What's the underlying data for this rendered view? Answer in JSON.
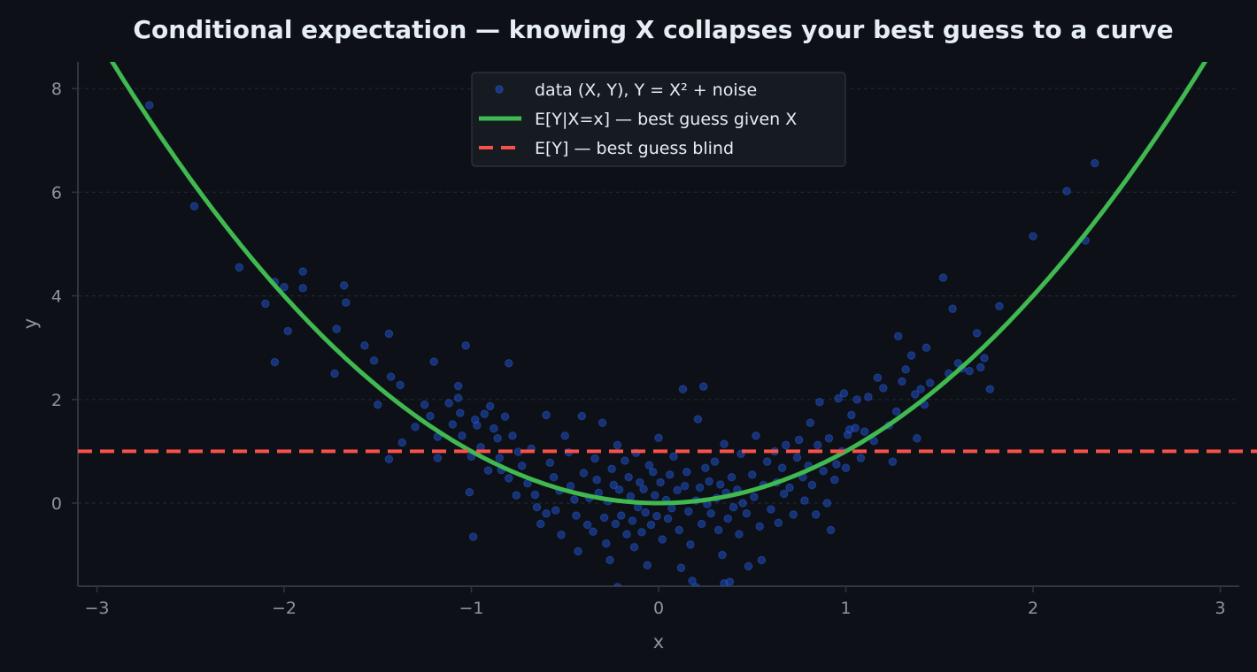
{
  "chart_data": {
    "type": "scatter",
    "title": "Conditional expectation — knowing X collapses your best guess to a curve",
    "xlabel": "x",
    "ylabel": "y",
    "xlim": [
      -3.1,
      3.1
    ],
    "ylim": [
      -1.6,
      8.5
    ],
    "x_ticks": [
      -3,
      -2,
      -1,
      0,
      1,
      2,
      3
    ],
    "x_tick_labels": [
      "−3",
      "−2",
      "−1",
      "0",
      "1",
      "2",
      "3"
    ],
    "y_ticks": [
      0,
      2,
      4,
      6,
      8
    ],
    "y_tick_labels": [
      "0",
      "2",
      "4",
      "6",
      "8"
    ],
    "grid": "horizontal dashed",
    "legend_position": "top-center",
    "series": [
      {
        "name": "data (X, Y),  Y = X² + noise",
        "kind": "scatter",
        "color": "#1f4fc2",
        "points": [
          [
            -2.72,
            7.68
          ],
          [
            -2.48,
            5.73
          ],
          [
            -2.24,
            4.55
          ],
          [
            -2.1,
            3.85
          ],
          [
            -2.05,
            4.27
          ],
          [
            -2.05,
            2.72
          ],
          [
            -2.0,
            4.17
          ],
          [
            -1.98,
            3.32
          ],
          [
            -1.9,
            4.47
          ],
          [
            -1.9,
            4.15
          ],
          [
            -1.73,
            2.5
          ],
          [
            -1.72,
            3.36
          ],
          [
            -1.68,
            4.2
          ],
          [
            -1.67,
            3.87
          ],
          [
            -1.57,
            3.04
          ],
          [
            -1.52,
            2.75
          ],
          [
            -1.5,
            1.9
          ],
          [
            -1.44,
            3.27
          ],
          [
            -1.44,
            0.85
          ],
          [
            -1.43,
            2.44
          ],
          [
            -1.38,
            2.28
          ],
          [
            -1.37,
            1.17
          ],
          [
            -1.3,
            1.47
          ],
          [
            -1.25,
            1.9
          ],
          [
            -1.22,
            1.68
          ],
          [
            -1.2,
            2.73
          ],
          [
            -1.18,
            1.28
          ],
          [
            -1.18,
            0.87
          ],
          [
            -1.12,
            1.93
          ],
          [
            -1.1,
            1.52
          ],
          [
            -1.07,
            2.26
          ],
          [
            -1.07,
            2.03
          ],
          [
            -1.06,
            1.74
          ],
          [
            -1.05,
            1.3
          ],
          [
            -1.03,
            3.04
          ],
          [
            -1.01,
            0.21
          ],
          [
            -1.0,
            0.9
          ],
          [
            -0.99,
            -0.65
          ],
          [
            -0.98,
            1.61
          ],
          [
            -0.97,
            1.5
          ],
          [
            -0.95,
            1.08
          ],
          [
            -0.93,
            1.72
          ],
          [
            -0.91,
            0.63
          ],
          [
            -0.9,
            1.87
          ],
          [
            -0.88,
            1.44
          ],
          [
            -0.86,
            1.25
          ],
          [
            -0.85,
            0.87
          ],
          [
            -0.84,
            0.64
          ],
          [
            -0.82,
            1.67
          ],
          [
            -0.8,
            2.7
          ],
          [
            -0.8,
            0.48
          ],
          [
            -0.78,
            1.3
          ],
          [
            -0.76,
            0.15
          ],
          [
            -0.75,
            0.99
          ],
          [
            -0.73,
            0.72
          ],
          [
            -0.7,
            0.38
          ],
          [
            -0.68,
            1.05
          ],
          [
            -0.66,
            0.16
          ],
          [
            -0.65,
            -0.08
          ],
          [
            -0.63,
            -0.4
          ],
          [
            -0.6,
            1.7
          ],
          [
            -0.58,
            0.78
          ],
          [
            -0.56,
            0.5
          ],
          [
            -0.55,
            -0.14
          ],
          [
            -0.53,
            0.24
          ],
          [
            -0.52,
            -0.61
          ],
          [
            -0.5,
            1.3
          ],
          [
            -0.48,
            0.98
          ],
          [
            -0.47,
            0.33
          ],
          [
            -0.45,
            0.07
          ],
          [
            -0.44,
            -0.24
          ],
          [
            -0.43,
            -0.93
          ],
          [
            -0.41,
            1.68
          ],
          [
            -0.4,
            0.58
          ],
          [
            -0.38,
            -0.42
          ],
          [
            -0.37,
            0.1
          ],
          [
            -0.35,
            -0.55
          ],
          [
            -0.34,
            0.86
          ],
          [
            -0.33,
            0.45
          ],
          [
            -0.32,
            0.2
          ],
          [
            -0.3,
            1.55
          ],
          [
            -0.29,
            -0.28
          ],
          [
            -0.28,
            -0.78
          ],
          [
            -0.27,
            0.04
          ],
          [
            -0.26,
            -1.1
          ],
          [
            -0.25,
            0.66
          ],
          [
            -0.24,
            0.35
          ],
          [
            -0.23,
            -0.4
          ],
          [
            -0.22,
            1.12
          ],
          [
            -0.21,
            0.26
          ],
          [
            -0.2,
            -0.24
          ],
          [
            -0.18,
            0.82
          ],
          [
            -0.17,
            -0.6
          ],
          [
            -0.16,
            0.5
          ],
          [
            -0.15,
            0.13
          ],
          [
            -0.14,
            -0.34
          ],
          [
            -0.13,
            -0.85
          ],
          [
            -0.12,
            0.97
          ],
          [
            -0.11,
            -0.08
          ],
          [
            -0.1,
            0.4
          ],
          [
            -0.09,
            -0.56
          ],
          [
            -0.08,
            0.27
          ],
          [
            -0.07,
            -0.18
          ],
          [
            -0.06,
            -1.2
          ],
          [
            -0.05,
            0.73
          ],
          [
            -0.04,
            -0.42
          ],
          [
            -0.03,
            0.6
          ],
          [
            -0.02,
            0.15
          ],
          [
            -0.01,
            -0.25
          ],
          [
            0.0,
            1.26
          ],
          [
            0.01,
            0.4
          ],
          [
            0.02,
            -0.7
          ],
          [
            0.04,
            0.06
          ],
          [
            0.05,
            -0.3
          ],
          [
            0.06,
            0.55
          ],
          [
            0.07,
            -0.1
          ],
          [
            0.08,
            0.9
          ],
          [
            0.1,
            0.25
          ],
          [
            0.11,
            -0.52
          ],
          [
            0.12,
            -1.25
          ],
          [
            0.13,
            2.2
          ],
          [
            0.14,
            0.33
          ],
          [
            0.15,
            0.6
          ],
          [
            0.16,
            -0.16
          ],
          [
            0.17,
            -0.8
          ],
          [
            0.18,
            -1.5
          ],
          [
            0.2,
            0.05
          ],
          [
            0.21,
            1.62
          ],
          [
            0.22,
            0.3
          ],
          [
            0.23,
            -0.4
          ],
          [
            0.24,
            2.25
          ],
          [
            0.25,
            0.68
          ],
          [
            0.26,
            -0.02
          ],
          [
            0.27,
            0.42
          ],
          [
            0.28,
            -0.2
          ],
          [
            0.3,
            0.8
          ],
          [
            0.31,
            0.1
          ],
          [
            0.32,
            -0.52
          ],
          [
            0.33,
            0.36
          ],
          [
            0.34,
            -1.0
          ],
          [
            0.35,
            1.14
          ],
          [
            0.36,
            0.2
          ],
          [
            0.37,
            -0.3
          ],
          [
            0.38,
            -1.52
          ],
          [
            0.39,
            0.5
          ],
          [
            0.4,
            -0.08
          ],
          [
            0.42,
            0.26
          ],
          [
            0.43,
            -0.6
          ],
          [
            0.44,
            0.95
          ],
          [
            0.45,
            0.0
          ],
          [
            0.47,
            -0.2
          ],
          [
            0.48,
            -1.22
          ],
          [
            0.5,
            0.55
          ],
          [
            0.51,
            0.12
          ],
          [
            0.52,
            1.3
          ],
          [
            0.54,
            -0.45
          ],
          [
            0.55,
            -1.1
          ],
          [
            0.56,
            0.35
          ],
          [
            0.58,
            0.8
          ],
          [
            0.6,
            -0.12
          ],
          [
            0.62,
            1.0
          ],
          [
            0.63,
            0.4
          ],
          [
            0.64,
            -0.38
          ],
          [
            0.66,
            0.68
          ],
          [
            0.67,
            0.18
          ],
          [
            0.68,
            1.12
          ],
          [
            0.7,
            0.3
          ],
          [
            0.72,
            -0.22
          ],
          [
            0.74,
            0.88
          ],
          [
            0.75,
            1.22
          ],
          [
            0.77,
            0.5
          ],
          [
            0.78,
            0.05
          ],
          [
            0.8,
            0.72
          ],
          [
            0.81,
            1.55
          ],
          [
            0.82,
            0.35
          ],
          [
            0.84,
            -0.22
          ],
          [
            0.85,
            1.12
          ],
          [
            0.86,
            1.95
          ],
          [
            0.88,
            0.62
          ],
          [
            0.9,
            0.0
          ],
          [
            0.91,
            1.25
          ],
          [
            0.92,
            -0.52
          ],
          [
            0.94,
            0.45
          ],
          [
            0.95,
            0.75
          ],
          [
            0.96,
            2.02
          ],
          [
            0.98,
            1.0
          ],
          [
            0.99,
            2.12
          ],
          [
            1.0,
            0.68
          ],
          [
            1.01,
            1.32
          ],
          [
            1.02,
            1.42
          ],
          [
            1.03,
            1.7
          ],
          [
            1.05,
            1.45
          ],
          [
            1.06,
            2.0
          ],
          [
            1.08,
            0.87
          ],
          [
            1.1,
            1.38
          ],
          [
            1.12,
            2.05
          ],
          [
            1.15,
            1.2
          ],
          [
            1.17,
            2.42
          ],
          [
            1.2,
            2.22
          ],
          [
            1.23,
            1.5
          ],
          [
            1.25,
            0.8
          ],
          [
            1.27,
            1.77
          ],
          [
            1.28,
            3.22
          ],
          [
            1.3,
            2.35
          ],
          [
            1.32,
            2.58
          ],
          [
            1.35,
            2.85
          ],
          [
            1.37,
            2.1
          ],
          [
            1.38,
            1.25
          ],
          [
            1.4,
            2.2
          ],
          [
            1.42,
            1.9
          ],
          [
            1.43,
            3.0
          ],
          [
            1.45,
            2.32
          ],
          [
            1.52,
            4.35
          ],
          [
            1.55,
            2.5
          ],
          [
            1.57,
            3.75
          ],
          [
            1.6,
            2.7
          ],
          [
            1.62,
            2.6
          ],
          [
            1.66,
            2.55
          ],
          [
            1.7,
            3.28
          ],
          [
            1.72,
            2.62
          ],
          [
            1.74,
            2.8
          ],
          [
            1.77,
            2.2
          ],
          [
            1.82,
            3.8
          ],
          [
            2.0,
            5.15
          ],
          [
            2.18,
            6.02
          ],
          [
            2.28,
            5.07
          ],
          [
            2.33,
            6.56
          ],
          [
            0.2,
            -1.62
          ],
          [
            0.35,
            -1.55
          ],
          [
            -0.22,
            -1.62
          ],
          [
            -0.6,
            -0.2
          ]
        ]
      },
      {
        "name": "E[Y|X=x] — best guess given X",
        "kind": "curve",
        "function": "x^2",
        "color": "#3fb950"
      },
      {
        "name": "E[Y] — best guess blind",
        "kind": "hline",
        "y": 1.0,
        "color": "#f85149",
        "dashed": true
      }
    ]
  }
}
